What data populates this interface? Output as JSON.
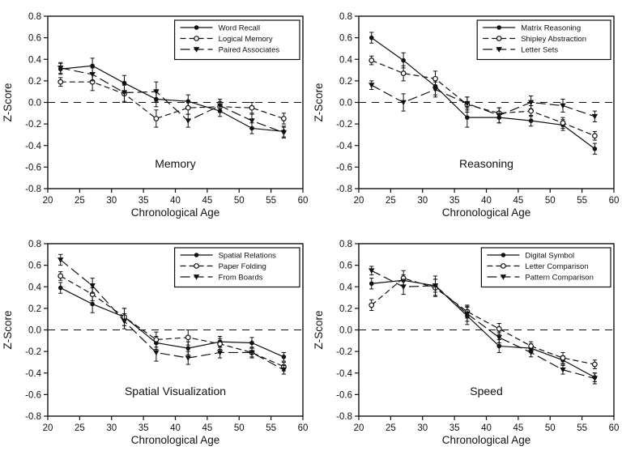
{
  "figure": {
    "background": "#ffffff",
    "ink_color": "#111111",
    "xlabel": "Chronological Age",
    "ylabel": "Z-Score"
  },
  "chart_data": [
    {
      "id": "memory",
      "type": "line",
      "title": "Memory",
      "xlabel": "Chronological Age",
      "ylabel": "Z-Score",
      "xlim": [
        20,
        60
      ],
      "ylim": [
        -0.8,
        0.8
      ],
      "xticks": [
        20,
        25,
        30,
        35,
        40,
        45,
        50,
        55,
        60
      ],
      "yticks": [
        -0.8,
        -0.6,
        -0.4,
        -0.2,
        0.0,
        0.2,
        0.4,
        0.6,
        0.8
      ],
      "zero_line": true,
      "grid": false,
      "legend_position": "top-right",
      "x": [
        22,
        27,
        32,
        37,
        42,
        47,
        52,
        57
      ],
      "series": [
        {
          "name": "Word Recall",
          "marker": "filled-circle",
          "line": "solid",
          "values": [
            0.31,
            0.34,
            0.18,
            0.03,
            0.01,
            -0.08,
            -0.24,
            -0.27
          ],
          "errors": [
            0.05,
            0.07,
            0.07,
            0.07,
            0.06,
            0.05,
            0.05,
            0.05
          ]
        },
        {
          "name": "Logical Memory",
          "marker": "open-circle",
          "line": "dashed",
          "values": [
            0.19,
            0.19,
            0.08,
            -0.15,
            -0.05,
            -0.04,
            -0.05,
            -0.15
          ],
          "errors": [
            0.04,
            0.08,
            0.08,
            0.08,
            0.06,
            0.05,
            0.05,
            0.05
          ]
        },
        {
          "name": "Paired Associates",
          "marker": "filled-triangle-down",
          "line": "long-dash",
          "values": [
            0.32,
            0.26,
            0.09,
            0.1,
            -0.17,
            -0.03,
            -0.17,
            -0.28
          ],
          "errors": [
            0.05,
            0.06,
            0.08,
            0.09,
            0.06,
            0.06,
            0.06,
            0.05
          ]
        }
      ]
    },
    {
      "id": "reasoning",
      "type": "line",
      "title": "Reasoning",
      "xlabel": "Chronological Age",
      "ylabel": "Z-Score",
      "xlim": [
        20,
        60
      ],
      "ylim": [
        -0.8,
        0.8
      ],
      "xticks": [
        20,
        25,
        30,
        35,
        40,
        45,
        50,
        55,
        60
      ],
      "yticks": [
        -0.8,
        -0.6,
        -0.4,
        -0.2,
        0.0,
        0.2,
        0.4,
        0.6,
        0.8
      ],
      "zero_line": true,
      "grid": false,
      "legend_position": "top-right",
      "x": [
        22,
        27,
        32,
        37,
        42,
        47,
        52,
        57
      ],
      "series": [
        {
          "name": "Matrix Reasoning",
          "marker": "filled-circle",
          "line": "solid",
          "values": [
            0.6,
            0.39,
            0.15,
            -0.14,
            -0.14,
            -0.17,
            -0.21,
            -0.43
          ],
          "errors": [
            0.05,
            0.07,
            0.08,
            0.09,
            0.05,
            0.05,
            0.05,
            0.05
          ]
        },
        {
          "name": "Shipley Abstraction",
          "marker": "open-circle",
          "line": "dashed",
          "values": [
            0.39,
            0.27,
            0.22,
            -0.02,
            -0.1,
            -0.08,
            -0.19,
            -0.31
          ],
          "errors": [
            0.04,
            0.07,
            0.07,
            0.07,
            0.05,
            0.05,
            0.05,
            0.04
          ]
        },
        {
          "name": "Letter Sets",
          "marker": "filled-triangle-down",
          "line": "long-dash",
          "values": [
            0.16,
            0.0,
            0.12,
            -0.01,
            -0.12,
            0.0,
            -0.03,
            -0.13
          ],
          "errors": [
            0.04,
            0.08,
            0.07,
            0.06,
            0.07,
            0.06,
            0.06,
            0.05
          ]
        }
      ]
    },
    {
      "id": "spatial_visualization",
      "type": "line",
      "title": "Spatial Visualization",
      "xlabel": "Chronological Age",
      "ylabel": "Z-Score",
      "xlim": [
        20,
        60
      ],
      "ylim": [
        -0.8,
        0.8
      ],
      "xticks": [
        20,
        25,
        30,
        35,
        40,
        45,
        50,
        55,
        60
      ],
      "yticks": [
        -0.8,
        -0.6,
        -0.4,
        -0.2,
        0.0,
        0.2,
        0.4,
        0.6,
        0.8
      ],
      "zero_line": true,
      "grid": false,
      "legend_position": "top-right",
      "x": [
        22,
        27,
        32,
        37,
        42,
        47,
        52,
        57
      ],
      "series": [
        {
          "name": "Spatial Relations",
          "marker": "filled-circle",
          "line": "solid",
          "values": [
            0.39,
            0.24,
            0.12,
            -0.12,
            -0.17,
            -0.11,
            -0.12,
            -0.25
          ],
          "errors": [
            0.05,
            0.08,
            0.08,
            0.06,
            0.06,
            0.05,
            0.05,
            0.04
          ]
        },
        {
          "name": "Paper Folding",
          "marker": "open-circle",
          "line": "dashed",
          "values": [
            0.5,
            0.33,
            0.12,
            -0.09,
            -0.07,
            -0.13,
            -0.21,
            -0.34
          ],
          "errors": [
            0.04,
            0.06,
            0.08,
            0.07,
            0.07,
            0.05,
            0.04,
            0.04
          ]
        },
        {
          "name": "From Boards",
          "marker": "filled-triangle-down",
          "line": "long-dash",
          "values": [
            0.65,
            0.41,
            0.08,
            -0.21,
            -0.26,
            -0.21,
            -0.21,
            -0.37
          ],
          "errors": [
            0.05,
            0.07,
            0.07,
            0.08,
            0.06,
            0.05,
            0.05,
            0.04
          ]
        }
      ]
    },
    {
      "id": "speed",
      "type": "line",
      "title": "Speed",
      "xlabel": "Chronological Age",
      "ylabel": "Z-Score",
      "xlim": [
        20,
        60
      ],
      "ylim": [
        -0.8,
        0.8
      ],
      "xticks": [
        20,
        25,
        30,
        35,
        40,
        45,
        50,
        55,
        60
      ],
      "yticks": [
        -0.8,
        -0.6,
        -0.4,
        -0.2,
        0.0,
        0.2,
        0.4,
        0.6,
        0.8
      ],
      "zero_line": true,
      "grid": false,
      "legend_position": "top-right",
      "x": [
        22,
        27,
        32,
        37,
        42,
        47,
        52,
        57
      ],
      "series": [
        {
          "name": "Digital Symbol",
          "marker": "filled-circle",
          "line": "solid",
          "values": [
            0.43,
            0.46,
            0.41,
            0.13,
            -0.15,
            -0.17,
            -0.28,
            -0.44
          ],
          "errors": [
            0.05,
            0.05,
            0.06,
            0.08,
            0.06,
            0.04,
            0.04,
            0.04
          ]
        },
        {
          "name": "Letter Comparison",
          "marker": "open-circle",
          "line": "dashed",
          "values": [
            0.23,
            0.48,
            0.39,
            0.17,
            0.01,
            -0.15,
            -0.26,
            -0.32
          ],
          "errors": [
            0.05,
            0.07,
            0.08,
            0.06,
            0.05,
            0.04,
            0.05,
            0.04
          ]
        },
        {
          "name": "Pattern Comparison",
          "marker": "filled-triangle-down",
          "line": "long-dash",
          "values": [
            0.55,
            0.4,
            0.41,
            0.15,
            -0.07,
            -0.21,
            -0.37,
            -0.45
          ],
          "errors": [
            0.04,
            0.07,
            0.09,
            0.07,
            0.05,
            0.04,
            0.04,
            0.05
          ]
        }
      ]
    }
  ]
}
